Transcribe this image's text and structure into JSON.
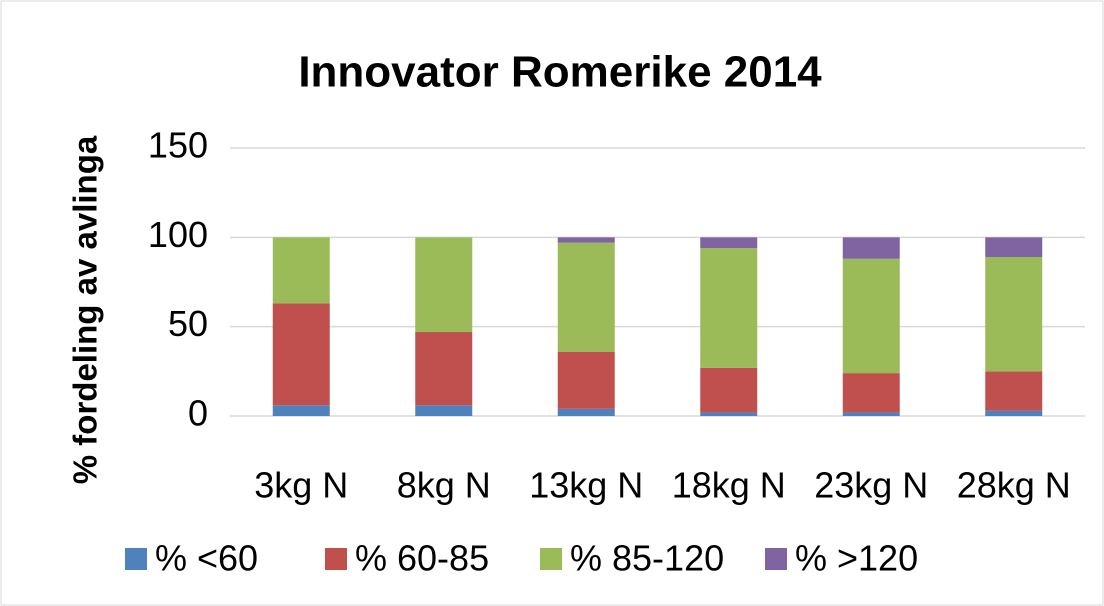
{
  "chart_data": {
    "type": "stacked_bar",
    "title": "Innovator Romerike 2014",
    "y_label": "% fordeling av avlinga",
    "categories": [
      "3kg N",
      "8kg N",
      "13kg N",
      "18kg N",
      "23kg N",
      "28kg N"
    ],
    "series": [
      {
        "name": "% <60",
        "color": "#4f81bd",
        "values": [
          6,
          6,
          4,
          2,
          2,
          3
        ]
      },
      {
        "name": "% 60-85",
        "color": "#c0504d",
        "values": [
          57,
          41,
          32,
          25,
          22,
          22
        ]
      },
      {
        "name": "% 85-120",
        "color": "#9bbb59",
        "values": [
          37,
          53,
          61,
          67,
          64,
          64
        ]
      },
      {
        "name": "% >120",
        "color": "#8064a2",
        "values": [
          0,
          0,
          3,
          6,
          12,
          11
        ]
      }
    ],
    "ylim": [
      0,
      150
    ],
    "yticks": [
      0,
      50,
      100,
      150
    ],
    "grid": true,
    "legend": "bottom"
  }
}
